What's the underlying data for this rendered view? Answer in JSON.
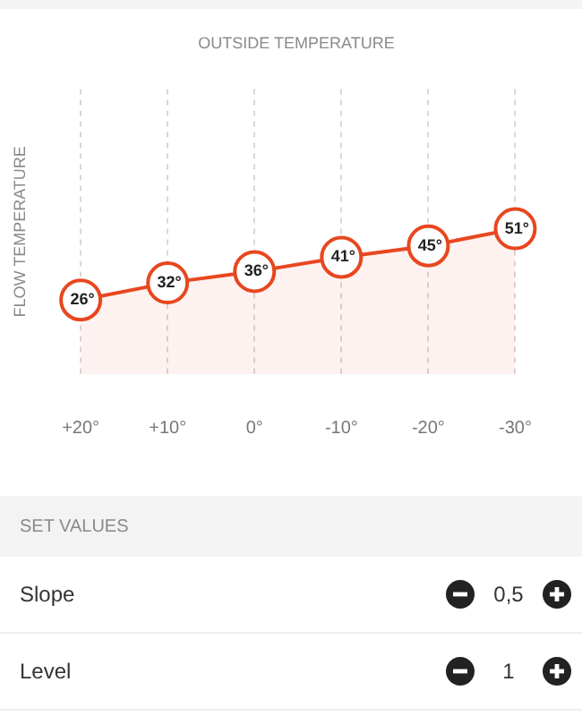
{
  "chart_data": {
    "type": "area",
    "title": "OUTSIDE TEMPERATURE",
    "ylabel": "FLOW TEMPERATURE",
    "categories": [
      "+20°",
      "+10°",
      "0°",
      "-10°",
      "-20°",
      "-30°"
    ],
    "series": [
      {
        "color": "#e8471f",
        "values": [
          26,
          32,
          36,
          41,
          45,
          51
        ],
        "value_labels": [
          "26°",
          "32°",
          "36°",
          "41°",
          "45°",
          "51°"
        ]
      }
    ],
    "ylim": [
      0,
      100
    ],
    "tick_labels": "x",
    "grid": "x",
    "marker": "circle",
    "line_style": "solid",
    "legend": false,
    "annotations": [
      "SET VALUES",
      "Slope",
      "0,5",
      "Level",
      "1"
    ]
  }
}
